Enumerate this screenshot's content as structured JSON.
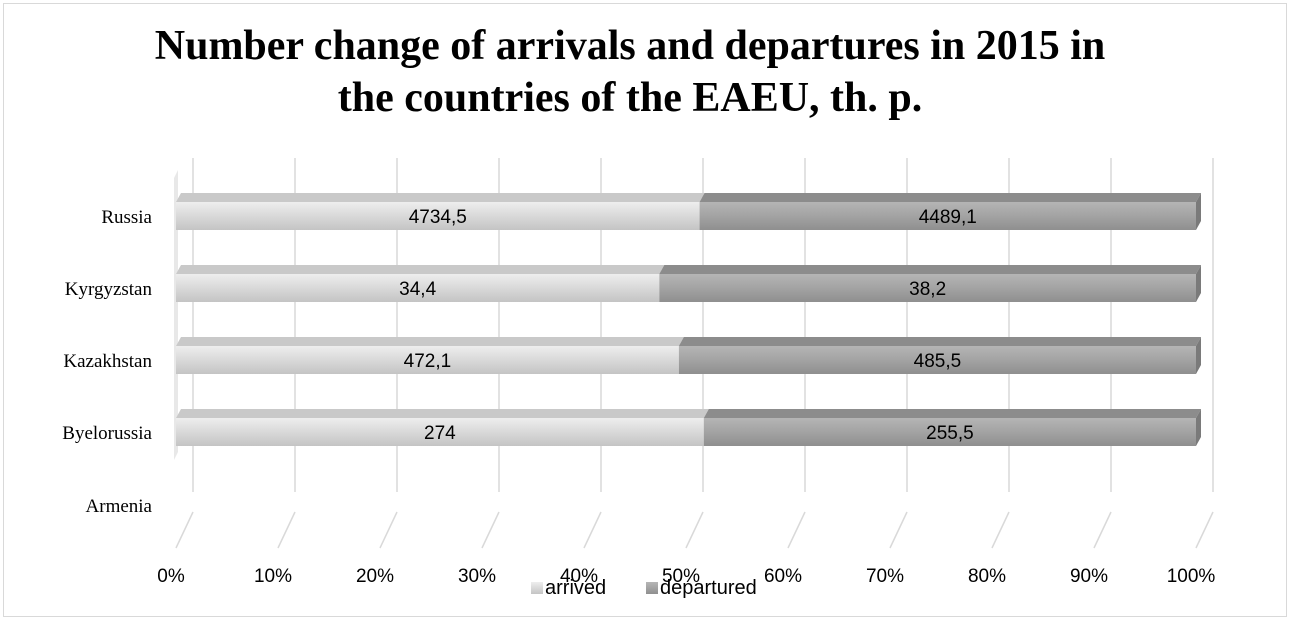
{
  "chart_data": {
    "type": "bar",
    "orientation": "horizontal",
    "stacking": "percent",
    "title_lines": [
      "Number change of arrivals and departures in 2015 in",
      "the countries of the EAEU, th. p."
    ],
    "categories": [
      "Armenia",
      "Byelorussia",
      "Kazakhstan",
      "Kyrgyzstan",
      "Russia"
    ],
    "series": [
      {
        "name": "arrived",
        "values": [
          null,
          274,
          472.1,
          34.4,
          4734.5
        ],
        "labels": [
          "",
          "274",
          "472,1",
          "34,4",
          "4734,5"
        ],
        "color": "#d9d9d9"
      },
      {
        "name": "departured",
        "values": [
          null,
          255.5,
          485.5,
          38.2,
          4489.1
        ],
        "labels": [
          "",
          "255,5",
          "485,5",
          "38,2",
          "4489,1"
        ],
        "color": "#a6a6a6"
      }
    ],
    "x_ticks": [
      "0%",
      "10%",
      "20%",
      "30%",
      "40%",
      "50%",
      "60%",
      "70%",
      "80%",
      "90%",
      "100%"
    ],
    "xlim": [
      0,
      100
    ],
    "grid": true,
    "legend_position": "bottom"
  }
}
